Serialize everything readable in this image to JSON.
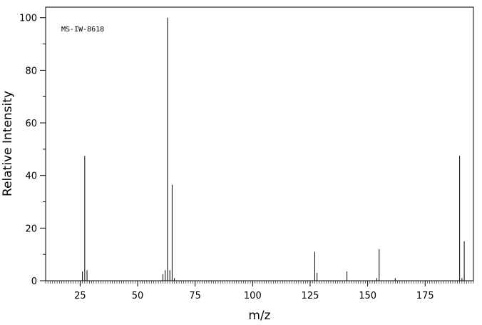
{
  "chart_data": {
    "type": "bar",
    "title": "",
    "annotation": "MS-IW-8618",
    "xlabel": "m/z",
    "ylabel": "Relative Intensity",
    "xlim": [
      10,
      196
    ],
    "ylim": [
      0,
      104
    ],
    "x_ticks": [
      25,
      50,
      75,
      100,
      125,
      150,
      175
    ],
    "y_ticks": [
      0,
      20,
      40,
      60,
      80,
      100
    ],
    "grid": false,
    "peaks": [
      {
        "mz": 26,
        "intensity": 3.5
      },
      {
        "mz": 27,
        "intensity": 47.5
      },
      {
        "mz": 28,
        "intensity": 4.0
      },
      {
        "mz": 61,
        "intensity": 2.5
      },
      {
        "mz": 62,
        "intensity": 4.0
      },
      {
        "mz": 63,
        "intensity": 100
      },
      {
        "mz": 64,
        "intensity": 4.0
      },
      {
        "mz": 65,
        "intensity": 36.5
      },
      {
        "mz": 66,
        "intensity": 1.0
      },
      {
        "mz": 127,
        "intensity": 11.0
      },
      {
        "mz": 128,
        "intensity": 3.0
      },
      {
        "mz": 141,
        "intensity": 3.5
      },
      {
        "mz": 155,
        "intensity": 12.0
      },
      {
        "mz": 154,
        "intensity": 1.0
      },
      {
        "mz": 162,
        "intensity": 1.0
      },
      {
        "mz": 190,
        "intensity": 47.5
      },
      {
        "mz": 191,
        "intensity": 1.0
      },
      {
        "mz": 192,
        "intensity": 15.0
      }
    ]
  }
}
